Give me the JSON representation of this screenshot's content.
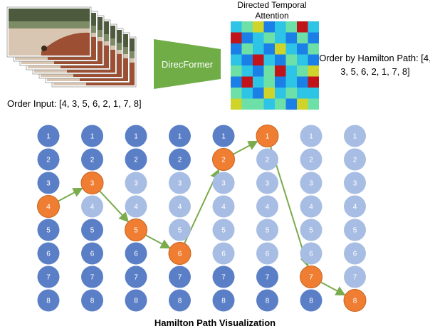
{
  "order_input_label": "Order Input: [4, 3, 5, 6, 2, 1, 7, 8]",
  "attention_title": "Directed Temporal Attention",
  "model_label": "DirecFormer",
  "order_hamilton_label": "Order by Hamilton Path: [4, 3, 5, 6, 2, 1, 7, 8]",
  "viz_title": "Hamilton Path Visualization",
  "node_labels": [
    "1",
    "2",
    "3",
    "4",
    "5",
    "6",
    "7",
    "8"
  ],
  "columns": 8,
  "path_sequence": [
    4,
    3,
    5,
    6,
    2,
    1,
    7,
    8
  ],
  "colors": {
    "active": "#5b7fc6",
    "faded": "#a8bde3",
    "selected": "#ef7d32",
    "arrow": "#7aab4c",
    "model_box": "#70ad47",
    "heatmap_palette": [
      "#1f3fbf",
      "#1a7fe6",
      "#2ec4e6",
      "#6de0a8",
      "#cfd42a",
      "#c0141a"
    ]
  },
  "attention_matrix": [
    [
      2,
      3,
      4,
      1,
      2,
      3,
      5,
      2
    ],
    [
      5,
      1,
      2,
      3,
      2,
      1,
      3,
      1
    ],
    [
      1,
      3,
      2,
      1,
      4,
      2,
      1,
      3
    ],
    [
      2,
      1,
      5,
      2,
      1,
      3,
      2,
      1
    ],
    [
      3,
      2,
      1,
      3,
      5,
      2,
      3,
      4
    ],
    [
      1,
      5,
      2,
      3,
      1,
      2,
      1,
      5
    ],
    [
      3,
      2,
      1,
      4,
      2,
      3,
      2,
      2
    ],
    [
      4,
      3,
      3,
      2,
      3,
      1,
      4,
      3
    ]
  ]
}
